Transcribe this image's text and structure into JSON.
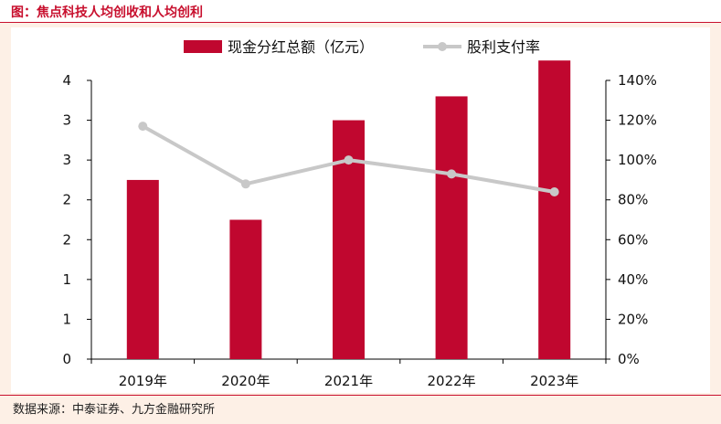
{
  "title": "图：焦点科技人均创收和人均创利",
  "source": "数据来源：中泰证券、九方金融研究所",
  "colors": {
    "bar": "#c0072f",
    "line": "#c8c8c8",
    "accent": "#c8102e"
  },
  "chart_data": {
    "type": "bar+line",
    "categories": [
      "2019年",
      "2020年",
      "2021年",
      "2022年",
      "2023年"
    ],
    "series": [
      {
        "name": "现金分红总额（亿元）",
        "type": "bar",
        "axis": "left",
        "values": [
          2.25,
          1.75,
          3.0,
          3.3,
          3.75
        ]
      },
      {
        "name": "股利支付率",
        "type": "line",
        "axis": "right",
        "values": [
          117,
          88,
          100,
          93,
          84
        ]
      }
    ],
    "left_axis": {
      "min": 0,
      "max": 3.5,
      "ticks": [
        0,
        0.5,
        1,
        1.5,
        2,
        2.5,
        3,
        3.5
      ],
      "tick_labels": [
        "0",
        "1",
        "1",
        "2",
        "2",
        "3",
        "3",
        "4"
      ]
    },
    "right_axis": {
      "min": 0,
      "max": 140,
      "ticks": [
        0,
        20,
        40,
        60,
        80,
        100,
        120,
        140
      ],
      "tick_labels": [
        "0%",
        "20%",
        "40%",
        "60%",
        "80%",
        "100%",
        "120%",
        "140%"
      ]
    },
    "legend": {
      "position": "top-center",
      "entries": [
        "现金分红总额（亿元）",
        "股利支付率"
      ]
    }
  }
}
